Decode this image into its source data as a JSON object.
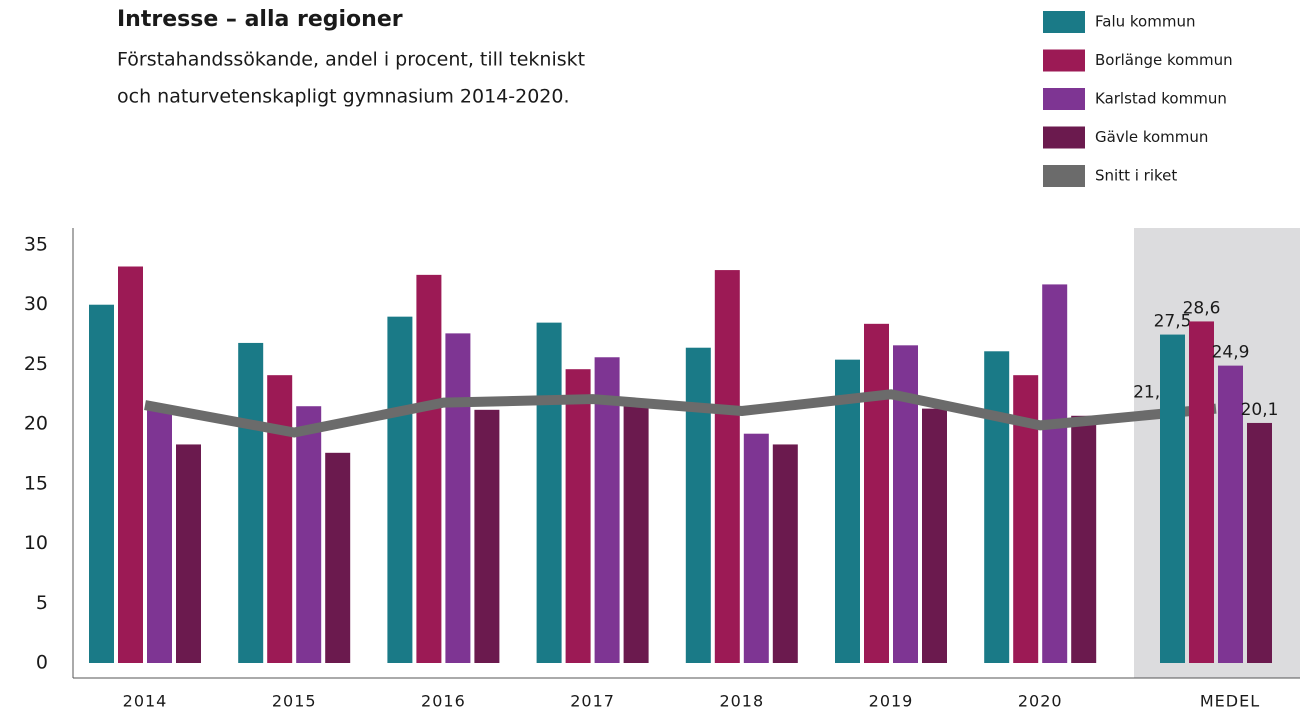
{
  "chart_data": {
    "type": "bar",
    "title": "Intresse – alla regioner",
    "subtitle": [
      "Förstahandssökande, andel i procent, till tekniskt",
      "och naturvetenskapligt gymnasium 2014-2020."
    ],
    "categories": [
      "2014",
      "2015",
      "2016",
      "2017",
      "2018",
      "2019",
      "2020",
      "MEDEL"
    ],
    "series": [
      {
        "name": "Falu kommun",
        "color": "#1a7a87",
        "values": [
          30.0,
          26.8,
          29.0,
          28.5,
          26.4,
          25.4,
          26.1,
          27.5
        ],
        "value_labels": [
          null,
          null,
          null,
          null,
          null,
          null,
          null,
          "27,5"
        ]
      },
      {
        "name": "Borlänge kommun",
        "color": "#9c1a55",
        "values": [
          33.2,
          24.1,
          32.5,
          24.6,
          32.9,
          28.4,
          24.1,
          28.6
        ],
        "value_labels": [
          null,
          null,
          null,
          null,
          null,
          null,
          null,
          "28,6"
        ]
      },
      {
        "name": "Karlstad kommun",
        "color": "#7e3593",
        "values": [
          21.6,
          21.5,
          27.6,
          25.6,
          19.2,
          26.6,
          31.7,
          24.9
        ],
        "value_labels": [
          null,
          null,
          null,
          null,
          null,
          null,
          null,
          "24,9"
        ]
      },
      {
        "name": "Gävle kommun",
        "color": "#6b1a4e",
        "values": [
          18.3,
          17.6,
          21.2,
          21.5,
          18.3,
          21.3,
          20.7,
          20.1
        ],
        "value_labels": [
          null,
          null,
          null,
          null,
          null,
          null,
          null,
          "20,1"
        ]
      },
      {
        "name": "Snitt i riket",
        "color": "#6b6b6b",
        "type": "line",
        "values": [
          21.6,
          19.3,
          21.8,
          22.1,
          21.1,
          22.5,
          19.9,
          21.3
        ],
        "value_labels": [
          null,
          null,
          null,
          null,
          null,
          null,
          null,
          "21,3"
        ]
      }
    ],
    "ylim": [
      0,
      35
    ],
    "yticks": [
      0,
      5,
      10,
      15,
      20,
      25,
      30,
      35
    ],
    "grid": false,
    "legend": "top-right"
  }
}
